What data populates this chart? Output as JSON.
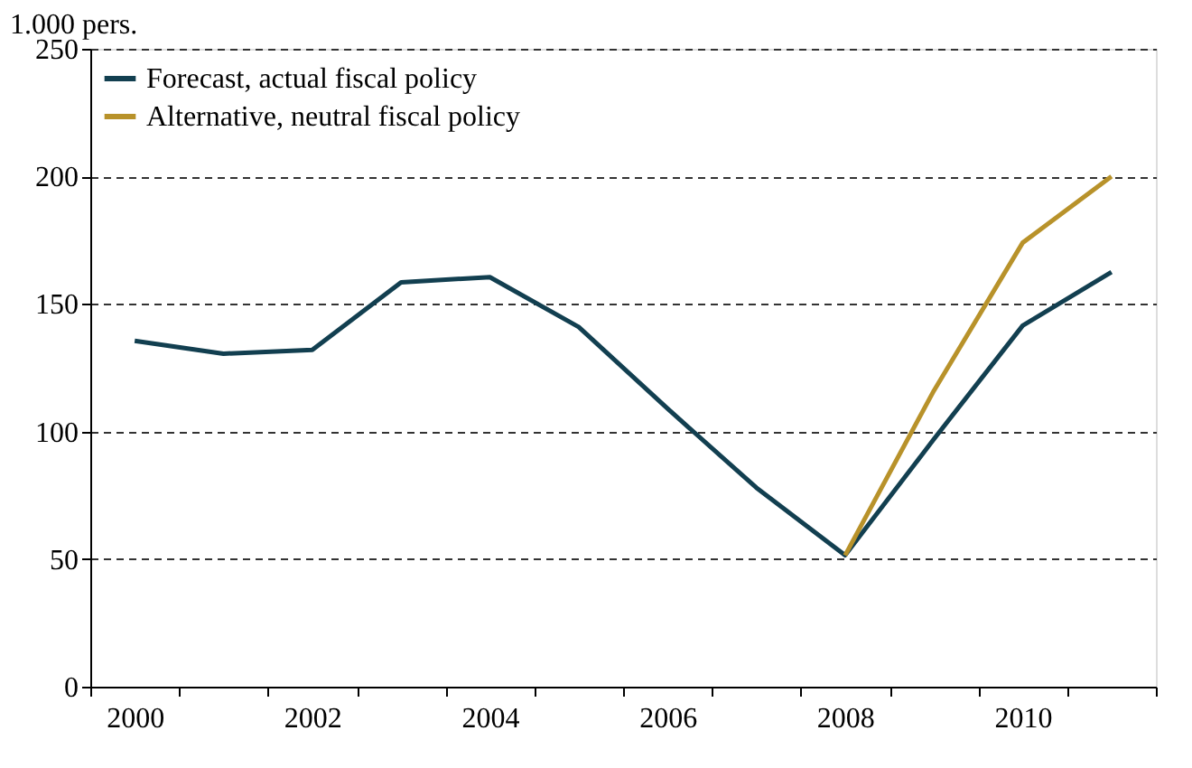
{
  "chart_data": {
    "type": "line",
    "ylabel": "1.000 pers.",
    "categories": [
      "2000",
      null,
      "2002",
      null,
      "2004",
      null,
      "2006",
      null,
      "2008",
      null,
      "2010",
      null
    ],
    "series": [
      {
        "name": "Forecast, actual fiscal policy",
        "color": "#123f50",
        "values": [
          135.5,
          130.5,
          132,
          158.5,
          160.5,
          141,
          109,
          78,
          51.5,
          97,
          141.5,
          162.5
        ]
      },
      {
        "name": "Alternative, neutral fiscal policy",
        "color": "#b8922a",
        "values": [
          null,
          null,
          null,
          null,
          null,
          null,
          null,
          null,
          51.5,
          116,
          174,
          200
        ]
      }
    ],
    "ylim": [
      0,
      250
    ],
    "yticks": [
      0,
      50,
      100,
      150,
      200,
      250
    ],
    "grid": "y",
    "legend": "top left",
    "line_style": "solid",
    "marker": "none"
  }
}
